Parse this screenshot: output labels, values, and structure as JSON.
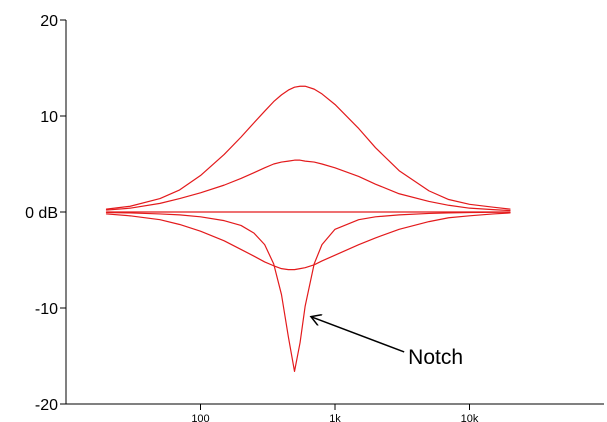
{
  "chart_data": {
    "type": "line",
    "title": "",
    "xlabel": "",
    "ylabel": "",
    "x_scale": "log",
    "xlim": [
      10,
      100000
    ],
    "ylim": [
      -20,
      20
    ],
    "grid": false,
    "legend": "none",
    "series_color": "#e31a1c",
    "y_ticks": [
      {
        "value": 20,
        "label": "20"
      },
      {
        "value": 10,
        "label": "10"
      },
      {
        "value": 0,
        "label": "0 dB"
      },
      {
        "value": -10,
        "label": "-10"
      },
      {
        "value": -20,
        "label": "-20"
      }
    ],
    "x_ticks": [
      {
        "value": 100,
        "label": "100"
      },
      {
        "value": 1000,
        "label": "1k"
      },
      {
        "value": 10000,
        "label": "10k"
      }
    ],
    "x": [
      20,
      30,
      50,
      70,
      100,
      150,
      200,
      250,
      300,
      350,
      400,
      450,
      500,
      550,
      600,
      700,
      800,
      1000,
      1500,
      2000,
      3000,
      5000,
      7000,
      10000,
      15000,
      20000
    ],
    "series": [
      {
        "values": [
          0.3,
          0.6,
          1.4,
          2.3,
          3.8,
          6.0,
          7.8,
          9.3,
          10.5,
          11.5,
          12.2,
          12.7,
          13.0,
          13.1,
          13.1,
          12.8,
          12.3,
          11.2,
          8.7,
          6.7,
          4.3,
          2.2,
          1.3,
          0.8,
          0.5,
          0.3
        ]
      },
      {
        "values": [
          0.2,
          0.4,
          0.9,
          1.4,
          2.0,
          2.8,
          3.5,
          4.1,
          4.6,
          5.0,
          5.2,
          5.3,
          5.4,
          5.4,
          5.3,
          5.2,
          5.0,
          4.6,
          3.7,
          2.9,
          1.9,
          1.1,
          0.7,
          0.4,
          0.25,
          0.15
        ]
      },
      {
        "values": [
          0.0,
          0.0,
          0.0,
          0.0,
          0.0,
          0.0,
          0.0,
          0.0,
          0.0,
          0.0,
          0.0,
          0.0,
          0.0,
          0.0,
          0.0,
          0.0,
          0.0,
          0.0,
          0.0,
          0.0,
          0.0,
          0.0,
          0.0,
          0.0,
          0.0,
          0.0
        ]
      },
      {
        "values": [
          -0.2,
          -0.4,
          -0.8,
          -1.3,
          -2.0,
          -3.0,
          -3.9,
          -4.6,
          -5.2,
          -5.6,
          -5.9,
          -6.0,
          -6.0,
          -5.9,
          -5.8,
          -5.5,
          -5.1,
          -4.5,
          -3.4,
          -2.7,
          -1.8,
          -1.0,
          -0.6,
          -0.4,
          -0.2,
          -0.1
        ]
      },
      {
        "values": [
          -0.05,
          -0.1,
          -0.2,
          -0.3,
          -0.5,
          -0.9,
          -1.4,
          -2.2,
          -3.4,
          -5.4,
          -8.6,
          -13.0,
          -16.6,
          -13.6,
          -9.8,
          -5.4,
          -3.4,
          -1.8,
          -0.8,
          -0.5,
          -0.3,
          -0.15,
          -0.1,
          -0.05,
          -0.03,
          -0.02
        ]
      }
    ],
    "annotation": {
      "text": "Notch",
      "target_x": 640,
      "target_y": -10.9,
      "label_x": 3500,
      "label_y": -15.1
    }
  }
}
